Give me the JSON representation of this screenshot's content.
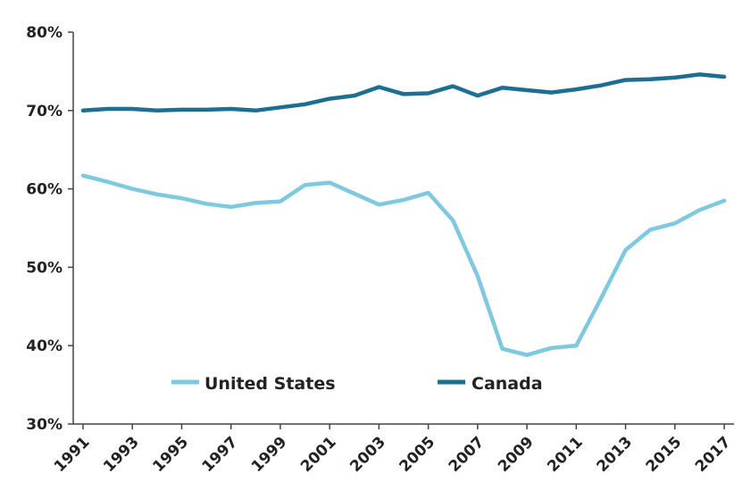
{
  "chart_data": {
    "type": "line",
    "x": [
      1991,
      1992,
      1993,
      1994,
      1995,
      1996,
      1997,
      1998,
      1999,
      2000,
      2001,
      2002,
      2003,
      2004,
      2005,
      2006,
      2007,
      2008,
      2009,
      2010,
      2011,
      2012,
      2013,
      2014,
      2015,
      2016,
      2017
    ],
    "x_tick_labels": [
      "1991",
      "1993",
      "1995",
      "1997",
      "1999",
      "2001",
      "2003",
      "2005",
      "2007",
      "2009",
      "2011",
      "2013",
      "2015",
      "2017"
    ],
    "y_tick_labels": [
      "30%",
      "40%",
      "50%",
      "60%",
      "70%",
      "80%"
    ],
    "ylim": [
      30,
      80
    ],
    "xlim": [
      1991,
      2017
    ],
    "grid": false,
    "legend_placement": "bottom-center",
    "series": [
      {
        "name": "United States",
        "color": "#7ec8e0",
        "values": [
          61.7,
          60.9,
          60.0,
          59.3,
          58.8,
          58.1,
          57.7,
          58.2,
          58.4,
          60.5,
          60.8,
          59.4,
          58.0,
          58.6,
          59.5,
          56.0,
          48.9,
          39.6,
          38.8,
          39.7,
          40.0,
          46.0,
          52.2,
          54.8,
          55.6,
          57.3,
          58.5
        ]
      },
      {
        "name": "Canada",
        "color": "#1d6e93",
        "values": [
          70.0,
          70.2,
          70.2,
          70.0,
          70.1,
          70.1,
          70.2,
          70.0,
          70.4,
          70.8,
          71.5,
          71.9,
          73.0,
          72.1,
          72.2,
          73.1,
          71.9,
          72.9,
          72.6,
          72.3,
          72.7,
          73.2,
          73.9,
          74.0,
          74.2,
          74.6,
          74.3
        ]
      }
    ]
  }
}
